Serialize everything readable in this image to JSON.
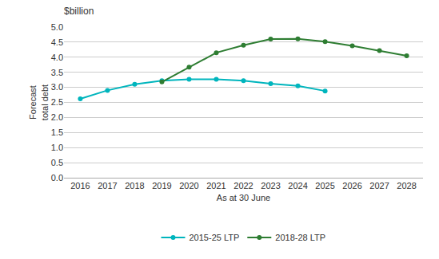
{
  "chart_data": {
    "type": "line",
    "title": "$billion",
    "xlabel": "As at 30 June",
    "ylabel": "Forecast\ntotal debt",
    "x": [
      2016,
      2017,
      2018,
      2019,
      2020,
      2021,
      2022,
      2023,
      2024,
      2025,
      2026,
      2027,
      2028
    ],
    "series": [
      {
        "name": "2015-25 LTP",
        "color": "#00b5bd",
        "marker": "circle",
        "line_style": "solid",
        "values": [
          2.62,
          2.9,
          3.1,
          3.22,
          3.27,
          3.27,
          3.22,
          3.12,
          3.05,
          2.88,
          null,
          null,
          null
        ]
      },
      {
        "name": "2018-28 LTP",
        "color": "#2e7d32",
        "marker": "circle",
        "line_style": "solid",
        "values": [
          null,
          null,
          null,
          3.18,
          3.67,
          4.15,
          4.4,
          4.6,
          4.61,
          4.52,
          4.38,
          4.22,
          4.05
        ]
      }
    ],
    "xlim": [
      2015.4,
      2028.6
    ],
    "xticks": [
      2016,
      2017,
      2018,
      2019,
      2020,
      2021,
      2022,
      2023,
      2024,
      2025,
      2026,
      2027,
      2028
    ],
    "ylim": [
      0.0,
      5.0
    ],
    "yticks": [
      {
        "value": 0,
        "label": "0.0"
      },
      0.5,
      {
        "value": 1,
        "label": "1.0"
      },
      1.5,
      {
        "value": 2,
        "label": "2.0"
      },
      2.5,
      {
        "value": 3,
        "label": "3.0"
      },
      3.5,
      {
        "value": 4,
        "label": "4.0"
      },
      4.5,
      {
        "value": 5,
        "label": "5.0"
      }
    ],
    "grid": "y",
    "legend": "bottom"
  }
}
